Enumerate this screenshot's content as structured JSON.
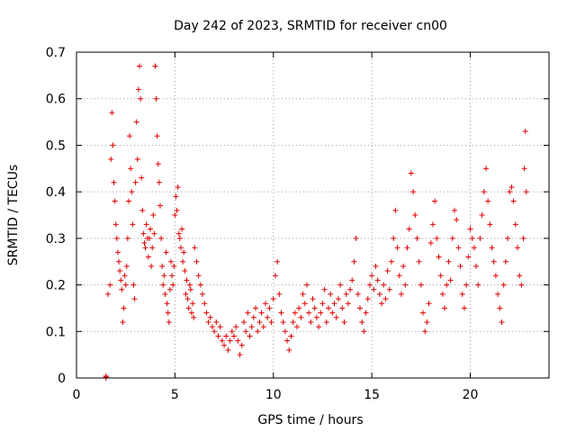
{
  "chart_data": {
    "type": "scatter",
    "title": "Day 242 of 2023, SRMTID for receiver cn00",
    "xlabel": "GPS time / hours",
    "ylabel": "SRMTID / TECUs",
    "xlim": [
      0,
      24
    ],
    "ylim": [
      0,
      0.7
    ],
    "xticks": [
      0,
      5,
      10,
      15,
      20
    ],
    "xtick_labels": [
      "0",
      "5",
      "10",
      "15",
      "20"
    ],
    "yticks": [
      0,
      0.1,
      0.2,
      0.3,
      0.4,
      0.5,
      0.6,
      0.7
    ],
    "ytick_labels": [
      "0",
      "0.1",
      "0.2",
      "0.3",
      "0.4",
      "0.5",
      "0.6",
      "0.7"
    ],
    "grid": true,
    "marker": "+",
    "color": "#e00000",
    "series": [
      {
        "name": "cn00",
        "x": [
          1.5,
          1.5,
          1.5,
          1.6,
          1.7,
          1.75,
          1.8,
          1.85,
          1.9,
          1.95,
          2.0,
          2.05,
          2.1,
          2.15,
          2.2,
          2.25,
          2.3,
          2.35,
          2.4,
          2.45,
          2.5,
          2.55,
          2.6,
          2.65,
          2.7,
          2.75,
          2.8,
          2.85,
          2.9,
          2.95,
          3.0,
          3.05,
          3.1,
          3.15,
          3.2,
          3.25,
          3.3,
          3.35,
          3.4,
          3.45,
          3.5,
          3.55,
          3.6,
          3.65,
          3.7,
          3.75,
          3.8,
          3.85,
          3.9,
          3.95,
          4.0,
          4.05,
          4.1,
          4.15,
          4.2,
          4.25,
          4.3,
          4.35,
          4.4,
          4.45,
          4.5,
          4.55,
          4.6,
          4.65,
          4.7,
          4.75,
          4.8,
          4.85,
          4.9,
          4.95,
          5.0,
          5.05,
          5.1,
          5.15,
          5.2,
          5.25,
          5.3,
          5.35,
          5.4,
          5.45,
          5.5,
          5.55,
          5.6,
          5.65,
          5.7,
          5.75,
          5.8,
          5.85,
          5.9,
          5.95,
          6.0,
          6.1,
          6.2,
          6.3,
          6.4,
          6.5,
          6.6,
          6.7,
          6.8,
          6.9,
          7.0,
          7.1,
          7.2,
          7.3,
          7.4,
          7.5,
          7.6,
          7.7,
          7.8,
          7.9,
          8.0,
          8.1,
          8.2,
          8.3,
          8.4,
          8.5,
          8.6,
          8.7,
          8.8,
          8.9,
          9.0,
          9.1,
          9.2,
          9.3,
          9.4,
          9.5,
          9.6,
          9.7,
          9.8,
          9.9,
          10.0,
          10.1,
          10.2,
          10.3,
          10.4,
          10.5,
          10.6,
          10.7,
          10.8,
          10.9,
          11.0,
          11.1,
          11.2,
          11.3,
          11.4,
          11.5,
          11.6,
          11.7,
          11.8,
          11.9,
          12.0,
          12.1,
          12.2,
          12.3,
          12.4,
          12.5,
          12.6,
          12.7,
          12.8,
          12.9,
          13.0,
          13.1,
          13.2,
          13.3,
          13.4,
          13.5,
          13.6,
          13.7,
          13.8,
          13.9,
          14.0,
          14.1,
          14.2,
          14.3,
          14.4,
          14.5,
          14.6,
          14.7,
          14.8,
          14.9,
          15.0,
          15.1,
          15.2,
          15.3,
          15.4,
          15.5,
          15.6,
          15.7,
          15.8,
          15.9,
          16.0,
          16.1,
          16.2,
          16.3,
          16.4,
          16.5,
          16.6,
          16.7,
          16.8,
          16.9,
          17.0,
          17.1,
          17.2,
          17.3,
          17.4,
          17.5,
          17.6,
          17.7,
          17.8,
          17.9,
          18.0,
          18.1,
          18.2,
          18.3,
          18.4,
          18.5,
          18.6,
          18.7,
          18.8,
          18.9,
          19.0,
          19.1,
          19.2,
          19.3,
          19.4,
          19.5,
          19.6,
          19.7,
          19.8,
          19.9,
          20.0,
          20.1,
          20.2,
          20.3,
          20.4,
          20.5,
          20.6,
          20.7,
          20.8,
          20.9,
          21.0,
          21.1,
          21.2,
          21.3,
          21.4,
          21.5,
          21.6,
          21.7,
          21.8,
          21.9,
          22.0,
          22.1,
          22.2,
          22.3,
          22.4,
          22.5,
          22.6,
          22.7,
          22.75,
          22.8,
          22.85
        ],
        "y": [
          0.0,
          0.004,
          0.002,
          0.18,
          0.2,
          0.47,
          0.57,
          0.5,
          0.42,
          0.38,
          0.33,
          0.3,
          0.27,
          0.25,
          0.23,
          0.21,
          0.19,
          0.12,
          0.15,
          0.22,
          0.2,
          0.24,
          0.3,
          0.38,
          0.52,
          0.45,
          0.4,
          0.33,
          0.2,
          0.17,
          0.42,
          0.55,
          0.47,
          0.62,
          0.67,
          0.6,
          0.43,
          0.36,
          0.31,
          0.29,
          0.28,
          0.33,
          0.3,
          0.26,
          0.3,
          0.32,
          0.24,
          0.28,
          0.35,
          0.31,
          0.67,
          0.6,
          0.52,
          0.46,
          0.42,
          0.37,
          0.3,
          0.24,
          0.2,
          0.22,
          0.18,
          0.27,
          0.16,
          0.14,
          0.12,
          0.19,
          0.25,
          0.22,
          0.2,
          0.24,
          0.35,
          0.39,
          0.36,
          0.41,
          0.31,
          0.3,
          0.28,
          0.32,
          0.25,
          0.27,
          0.23,
          0.18,
          0.21,
          0.17,
          0.15,
          0.2,
          0.19,
          0.14,
          0.16,
          0.13,
          0.28,
          0.25,
          0.22,
          0.2,
          0.18,
          0.16,
          0.14,
          0.12,
          0.13,
          0.11,
          0.1,
          0.12,
          0.09,
          0.11,
          0.08,
          0.07,
          0.09,
          0.06,
          0.08,
          0.1,
          0.09,
          0.11,
          0.08,
          0.05,
          0.07,
          0.12,
          0.1,
          0.14,
          0.09,
          0.11,
          0.13,
          0.15,
          0.1,
          0.12,
          0.14,
          0.11,
          0.16,
          0.13,
          0.15,
          0.12,
          0.17,
          0.22,
          0.25,
          0.18,
          0.14,
          0.12,
          0.1,
          0.08,
          0.06,
          0.09,
          0.12,
          0.14,
          0.11,
          0.15,
          0.13,
          0.18,
          0.16,
          0.2,
          0.14,
          0.12,
          0.17,
          0.15,
          0.13,
          0.11,
          0.14,
          0.16,
          0.19,
          0.12,
          0.15,
          0.18,
          0.14,
          0.16,
          0.13,
          0.17,
          0.2,
          0.15,
          0.12,
          0.18,
          0.16,
          0.19,
          0.21,
          0.25,
          0.3,
          0.18,
          0.15,
          0.12,
          0.1,
          0.14,
          0.17,
          0.2,
          0.22,
          0.19,
          0.24,
          0.21,
          0.18,
          0.16,
          0.2,
          0.17,
          0.23,
          0.19,
          0.25,
          0.3,
          0.36,
          0.28,
          0.22,
          0.18,
          0.24,
          0.2,
          0.28,
          0.32,
          0.44,
          0.4,
          0.35,
          0.3,
          0.25,
          0.2,
          0.14,
          0.1,
          0.12,
          0.16,
          0.29,
          0.33,
          0.38,
          0.3,
          0.26,
          0.22,
          0.18,
          0.15,
          0.2,
          0.25,
          0.21,
          0.3,
          0.36,
          0.34,
          0.28,
          0.24,
          0.18,
          0.15,
          0.2,
          0.26,
          0.32,
          0.3,
          0.28,
          0.24,
          0.2,
          0.3,
          0.35,
          0.4,
          0.45,
          0.38,
          0.33,
          0.28,
          0.25,
          0.22,
          0.18,
          0.15,
          0.12,
          0.2,
          0.25,
          0.3,
          0.4,
          0.41,
          0.38,
          0.33,
          0.28,
          0.22,
          0.2,
          0.3,
          0.45,
          0.53,
          0.4
        ]
      }
    ]
  }
}
